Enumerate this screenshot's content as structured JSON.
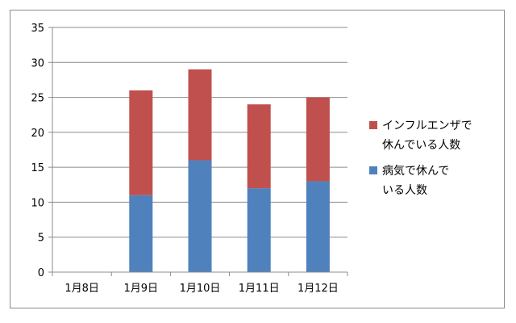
{
  "chart_data": {
    "type": "bar",
    "stacked": true,
    "title": "",
    "xlabel": "",
    "ylabel": "",
    "categories": [
      "1月8日",
      "1月9日",
      "1月10日",
      "1月11日",
      "1月12日"
    ],
    "ylim": [
      0,
      35
    ],
    "yticks": [
      0,
      5,
      10,
      15,
      20,
      25,
      30,
      35
    ],
    "grid": true,
    "legend_position": "right",
    "series": [
      {
        "name": "病気で休んでいる人数",
        "values": [
          0,
          11,
          16,
          12,
          13
        ],
        "color": "#4F81BD"
      },
      {
        "name": "インフルエンザで休んでいる人数",
        "values": [
          0,
          15,
          13,
          12,
          12
        ],
        "color": "#C0504D"
      }
    ],
    "legend": [
      {
        "series_index": 1,
        "lines": [
          "インフルエンザで",
          "休んでいる人数"
        ]
      },
      {
        "series_index": 0,
        "lines": [
          "病気で休んで",
          "いる人数"
        ]
      }
    ]
  }
}
